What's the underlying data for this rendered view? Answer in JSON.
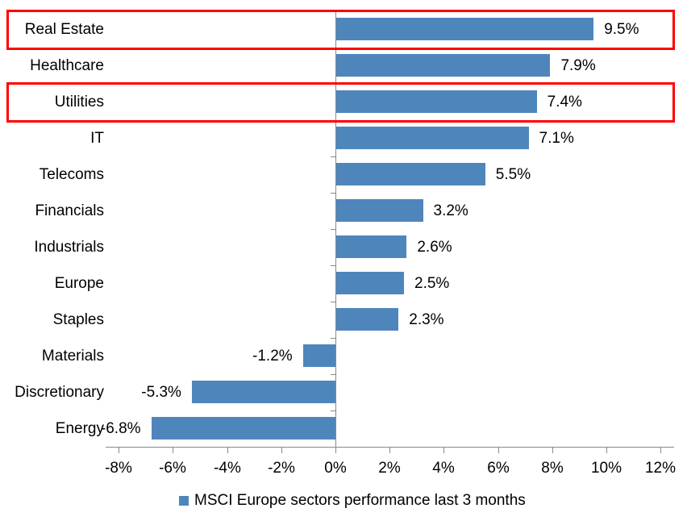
{
  "chart_data": {
    "type": "bar",
    "orientation": "horizontal",
    "categories": [
      "Real Estate",
      "Healthcare",
      "Utilities",
      "IT",
      "Telecoms",
      "Financials",
      "Industrials",
      "Europe",
      "Staples",
      "Materials",
      "Discretionary",
      "Energy"
    ],
    "values": [
      9.5,
      7.9,
      7.4,
      7.1,
      5.5,
      3.2,
      2.6,
      2.5,
      2.3,
      -1.2,
      -5.3,
      -6.8
    ],
    "data_labels": [
      "9.5%",
      "7.9%",
      "7.4%",
      "7.1%",
      "5.5%",
      "3.2%",
      "2.6%",
      "2.5%",
      "2.3%",
      "-1.2%",
      "-5.3%",
      "-6.8%"
    ],
    "x_ticks": [
      "-8%",
      "-6%",
      "-4%",
      "-2%",
      "0%",
      "2%",
      "4%",
      "6%",
      "8%",
      "10%",
      "12%"
    ],
    "xlim": [
      -8,
      12
    ],
    "xlabel": "",
    "ylabel": "",
    "title": "",
    "grid": false,
    "legend_position": "bottom",
    "series_name": "MSCI Europe sectors performance last 3 months",
    "bar_color": "#4E86BC",
    "axis_color": "#898989",
    "text_color": "#000000",
    "highlight_box_color": "#FE0000",
    "highlighted_categories": [
      "Real Estate",
      "Utilities"
    ]
  },
  "legend": {
    "label": "MSCI Europe sectors performance last 3 months",
    "marker_color": "#4E86BC"
  }
}
